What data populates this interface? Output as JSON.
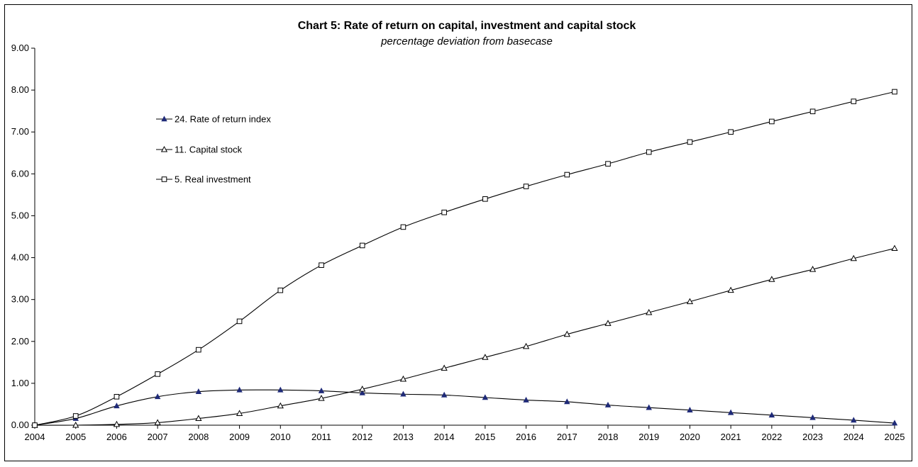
{
  "chart_data": {
    "type": "line",
    "title": "Chart 5: Rate of return on capital, investment and capital stock",
    "subtitle": "percentage deviation from basecase",
    "xlabel": "",
    "ylabel": "",
    "x": [
      "2004",
      "2005",
      "2006",
      "2007",
      "2008",
      "2009",
      "2010",
      "2011",
      "2012",
      "2013",
      "2014",
      "2015",
      "2016",
      "2017",
      "2018",
      "2019",
      "2020",
      "2021",
      "2022",
      "2023",
      "2024",
      "2025"
    ],
    "ylim": [
      0,
      9
    ],
    "yticks": [
      "0.00",
      "1.00",
      "2.00",
      "3.00",
      "4.00",
      "5.00",
      "6.00",
      "7.00",
      "8.00",
      "9.00"
    ],
    "grid": false,
    "legend_position": "upper-left",
    "series": [
      {
        "name": "24. Rate of return index",
        "marker": "filled-triangle",
        "marker_color": "#1f2a78",
        "values": [
          0.0,
          0.16,
          0.46,
          0.68,
          0.8,
          0.84,
          0.84,
          0.82,
          0.77,
          0.74,
          0.72,
          0.66,
          0.6,
          0.56,
          0.48,
          0.42,
          0.36,
          0.3,
          0.24,
          0.18,
          0.12,
          0.05
        ]
      },
      {
        "name": "11. Capital stock",
        "marker": "open-triangle",
        "marker_color": "#000000",
        "values": [
          0.0,
          0.0,
          0.02,
          0.06,
          0.16,
          0.28,
          0.46,
          0.64,
          0.86,
          1.1,
          1.36,
          1.62,
          1.88,
          2.17,
          2.43,
          2.69,
          2.95,
          3.22,
          3.48,
          3.72,
          3.98,
          4.22
        ]
      },
      {
        "name": "5. Real investment",
        "marker": "open-square",
        "marker_color": "#000000",
        "values": [
          0.0,
          0.22,
          0.68,
          1.22,
          1.8,
          2.48,
          3.22,
          3.82,
          4.29,
          4.73,
          5.08,
          5.4,
          5.7,
          5.98,
          6.24,
          6.52,
          6.76,
          7.0,
          7.25,
          7.49,
          7.73,
          7.96
        ]
      }
    ]
  }
}
